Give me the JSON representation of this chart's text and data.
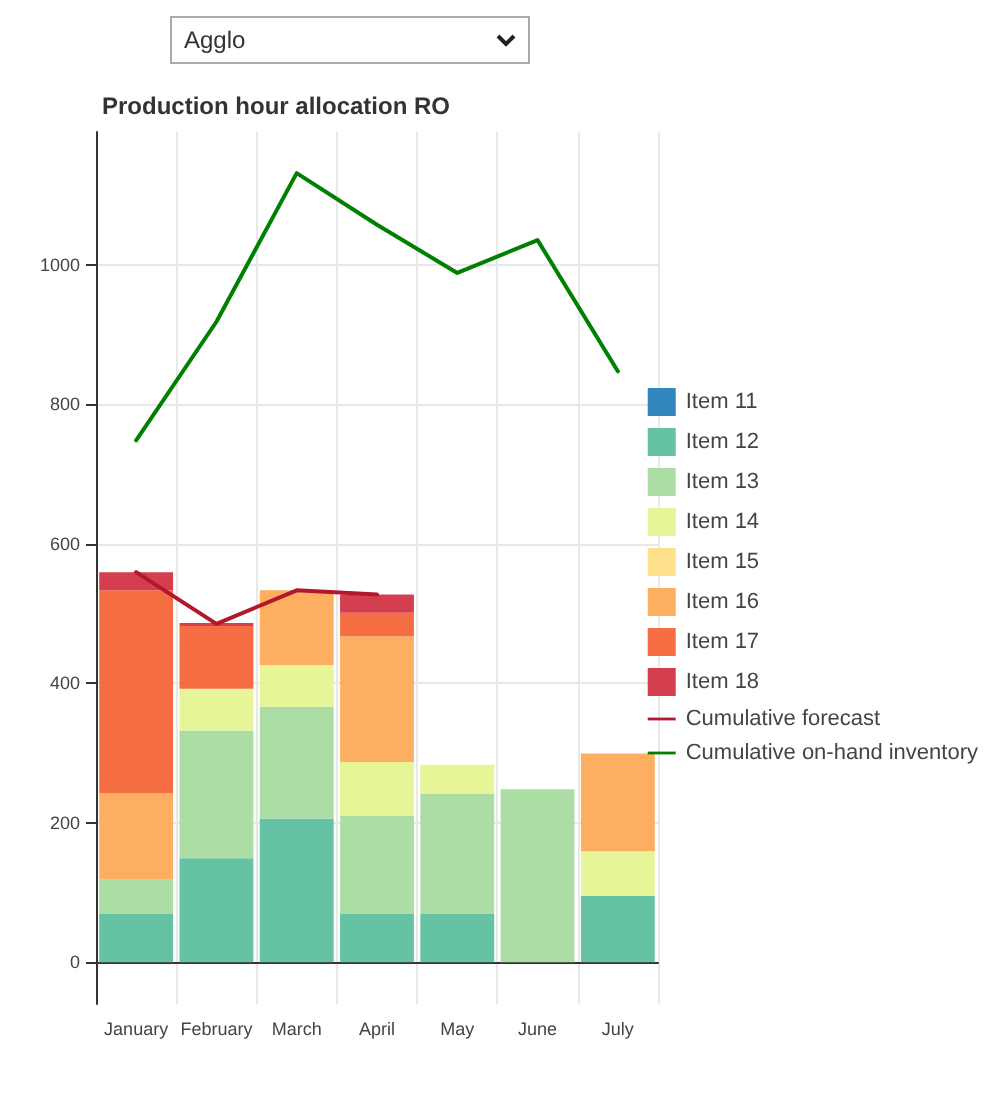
{
  "chart_data": {
    "type": "bar",
    "title": "Production hour allocation RO",
    "annotations": [
      "Agglo"
    ],
    "categories": [
      "January",
      "February",
      "March",
      "April",
      "May",
      "June",
      "July"
    ],
    "stacked": true,
    "ylim": [
      -60,
      1190
    ],
    "yticks": [
      0,
      200,
      400,
      600,
      800,
      1000
    ],
    "grid": true,
    "legend": "right",
    "marker": "none",
    "line_style": "solid",
    "series": [
      {
        "name": "Item 11",
        "color": "#3288bd",
        "values": [
          0,
          0,
          0,
          0,
          0,
          0,
          0
        ]
      },
      {
        "name": "Item 12",
        "color": "#66c2a5",
        "values": [
          69,
          149,
          206,
          69,
          69,
          0,
          95
        ]
      },
      {
        "name": "Item 13",
        "color": "#abdda4",
        "values": [
          49,
          183,
          160,
          141,
          172,
          248,
          0
        ]
      },
      {
        "name": "Item 14",
        "color": "#e6f598",
        "values": [
          0,
          60,
          60,
          77,
          42,
          null,
          64
        ]
      },
      {
        "name": "Item 15",
        "color": "#fee08b",
        "values": [
          0,
          0,
          0,
          0,
          null,
          null,
          0
        ]
      },
      {
        "name": "Item 16",
        "color": "#fdae61",
        "values": [
          124,
          0,
          107,
          180,
          null,
          null,
          140
        ]
      },
      {
        "name": "Item 17",
        "color": "#f46d43",
        "values": [
          291,
          90,
          0,
          34,
          null,
          null,
          null
        ]
      },
      {
        "name": "Item 18",
        "color": "#d53e4f",
        "values": [
          26,
          4,
          null,
          26,
          null,
          null,
          null
        ]
      },
      {
        "name": "Cumulative forecast",
        "type": "line",
        "color": "#b2182b",
        "values": [
          559,
          485,
          533,
          527,
          null,
          null,
          null
        ]
      },
      {
        "name": "Cumulative on-hand inventory",
        "type": "line",
        "color": "#008000",
        "values": [
          748,
          918,
          1131,
          1057,
          988,
          1035,
          847
        ]
      }
    ]
  }
}
